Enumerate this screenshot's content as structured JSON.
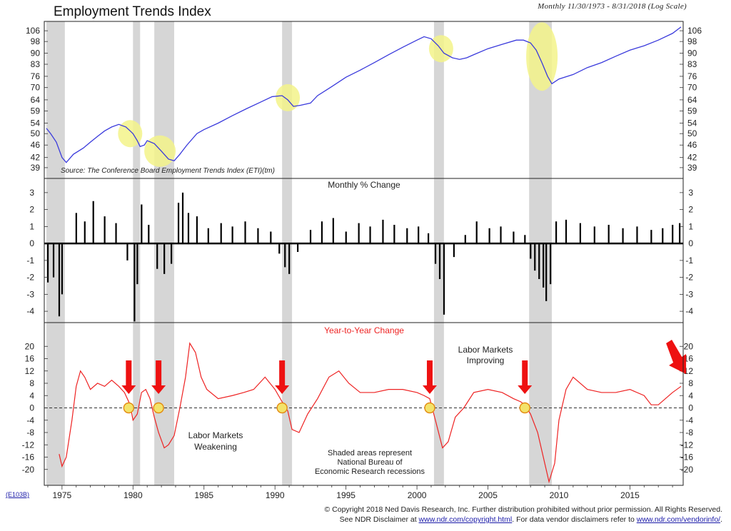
{
  "header": {
    "title": "Employment Trends Index",
    "range": "Monthly 11/30/1973 - 8/31/2018 (Log Scale)"
  },
  "footer": {
    "chart_code": "(E103B)",
    "copyright": "© Copyright 2018 Ned Davis Research, Inc.  Further distribution prohibited without prior permission.  All Rights Reserved.",
    "disclaimer_prefix": "See NDR Disclaimer at ",
    "disclaimer_link": "www.ndr.com/copyright.html",
    "vendor_prefix": ".  For data vendor disclaimers refer to ",
    "vendor_link": "www.ndr.com/vendorinfo/",
    "vendor_suffix": "."
  },
  "colors": {
    "eti": "#3a3adc",
    "yoy": "#ee2222",
    "recession": "#d6d6d6",
    "highlight": "#f3f38a",
    "arrow": "#ee1111"
  },
  "chart_data": [
    {
      "type": "line",
      "panel": "Employment Trends Index",
      "scale": "log",
      "source": "Source: The Conference Board Employment Trends Index (ETI)(tm)",
      "yticks": [
        39,
        42,
        46,
        50,
        54,
        59,
        64,
        70,
        76,
        83,
        90,
        98,
        106
      ],
      "xticks": [
        1975,
        1980,
        1985,
        1990,
        1995,
        2000,
        2005,
        2010,
        2015
      ],
      "ylim": [
        37,
        110
      ],
      "recessions": [
        [
          1973.9,
          1975.2
        ],
        [
          1980.0,
          1980.5
        ],
        [
          1981.5,
          1982.9
        ],
        [
          1990.5,
          1991.2
        ],
        [
          2001.2,
          2001.9
        ],
        [
          2007.9,
          2009.5
        ]
      ],
      "highlights": [
        [
          1979.8,
          50
        ],
        [
          1981.9,
          44
        ],
        [
          1990.9,
          65
        ],
        [
          2001.7,
          93
        ],
        [
          2008.8,
          86
        ]
      ],
      "series": [
        {
          "x": [
            1973.9,
            1974.2,
            1974.6,
            1975.0,
            1975.3,
            1975.8,
            1976.5,
            1977.0,
            1977.5,
            1978.0,
            1978.5,
            1979.0,
            1979.5,
            1979.8,
            1980.0,
            1980.3,
            1980.5,
            1980.8,
            1981.0,
            1981.5,
            1982.0,
            1982.5,
            1982.9,
            1983.3,
            1983.8,
            1984.5,
            1985.0,
            1986.0,
            1987.0,
            1988.0,
            1989.0,
            1989.8,
            1990.5,
            1990.9,
            1991.3,
            1991.8,
            1992.5,
            1993.0,
            1994.0,
            1995.0,
            1996.0,
            1997.0,
            1998.0,
            1999.0,
            2000.0,
            2000.5,
            2001.0,
            2001.5,
            2001.9,
            2002.5,
            2003.0,
            2003.5,
            2004.0,
            2005.0,
            2006.0,
            2007.0,
            2007.5,
            2008.0,
            2008.4,
            2008.8,
            2009.2,
            2009.5,
            2010.0,
            2011.0,
            2012.0,
            2013.0,
            2014.0,
            2015.0,
            2016.0,
            2017.0,
            2018.0,
            2018.6
          ],
          "values": [
            52,
            50,
            47,
            42,
            40.5,
            43,
            45,
            47,
            49,
            51,
            52.5,
            53.5,
            52.5,
            51,
            50,
            47.5,
            45.5,
            46,
            47.5,
            46.5,
            44,
            41.5,
            41,
            43,
            46,
            50,
            51.5,
            54,
            57,
            60,
            63,
            65.5,
            66,
            64,
            61,
            61.5,
            62.5,
            66,
            70.5,
            75.5,
            79.5,
            84,
            89,
            94,
            99,
            101.5,
            100,
            95,
            90,
            87,
            86,
            87,
            89,
            93,
            96,
            99,
            99,
            97,
            92,
            84,
            76,
            72,
            74.5,
            77,
            81,
            84,
            88,
            92,
            95,
            99,
            104,
            109
          ]
        }
      ]
    },
    {
      "type": "bar",
      "panel": "Monthly % Change",
      "title": "Monthly % Change",
      "yticks": [
        -4,
        -3,
        -2,
        -1,
        0,
        1,
        2,
        3
      ],
      "ylim": [
        -4.5,
        3.5
      ],
      "series": [
        {
          "x": [
            1974.0,
            1974.4,
            1974.8,
            1975.0,
            1976.0,
            1976.6,
            1977.2,
            1978.0,
            1978.8,
            1979.6,
            1980.1,
            1980.3,
            1980.6,
            1981.1,
            1981.7,
            1982.2,
            1982.7,
            1983.2,
            1983.5,
            1983.9,
            1984.5,
            1985.3,
            1986.2,
            1987.0,
            1987.9,
            1988.8,
            1989.7,
            1990.3,
            1990.7,
            1991.0,
            1991.6,
            1992.5,
            1993.3,
            1994.1,
            1995.0,
            1995.9,
            1996.7,
            1997.6,
            1998.4,
            1999.3,
            2000.1,
            2000.8,
            2001.3,
            2001.6,
            2001.9,
            2002.6,
            2003.4,
            2004.2,
            2005.1,
            2005.9,
            2006.8,
            2007.6,
            2008.0,
            2008.3,
            2008.6,
            2008.9,
            2009.1,
            2009.4,
            2009.8,
            2010.5,
            2011.5,
            2012.5,
            2013.5,
            2014.5,
            2015.5,
            2016.5,
            2017.3,
            2018.0,
            2018.5
          ],
          "values": [
            -2.3,
            -2.0,
            -4.3,
            -3.0,
            1.8,
            1.3,
            2.5,
            1.6,
            1.2,
            -1.0,
            -4.6,
            -2.4,
            2.3,
            1.1,
            -1.5,
            -1.8,
            -1.2,
            2.4,
            3.0,
            1.8,
            1.6,
            0.9,
            1.2,
            1.0,
            1.3,
            0.9,
            0.7,
            -0.6,
            -1.4,
            -1.8,
            -0.5,
            0.8,
            1.3,
            1.5,
            0.7,
            1.2,
            1.0,
            1.4,
            1.1,
            0.9,
            1.0,
            0.6,
            -1.2,
            -2.1,
            -4.2,
            -0.8,
            0.5,
            1.3,
            0.9,
            1.0,
            0.7,
            0.5,
            -0.9,
            -1.6,
            -2.1,
            -2.6,
            -3.4,
            -2.4,
            1.3,
            1.4,
            1.2,
            1.0,
            1.1,
            0.9,
            1.0,
            0.8,
            0.9,
            1.1,
            1.2
          ]
        }
      ]
    },
    {
      "type": "line",
      "panel": "Year-to-Year Change",
      "title": "Year-to-Year Change",
      "yticks": [
        -20,
        -16,
        -12,
        -8,
        -4,
        0,
        4,
        8,
        12,
        16,
        20
      ],
      "ylim": [
        -24,
        24
      ],
      "reference_line": 0,
      "annotations": [
        "Labor Markets Weakening",
        "Labor Markets Improving",
        "Shaded areas represent",
        "National Bureau of",
        "Economic Research recessions"
      ],
      "signal_arrows": [
        1979.7,
        1981.8,
        1990.5,
        2000.9,
        2007.6,
        2018.0
      ],
      "signal_circles": [
        1979.7,
        1981.8,
        1990.5,
        2000.9,
        2007.6
      ],
      "series": [
        {
          "x": [
            1974.8,
            1975.0,
            1975.3,
            1975.7,
            1976.0,
            1976.3,
            1976.6,
            1977.0,
            1977.5,
            1978.0,
            1978.5,
            1979.0,
            1979.4,
            1979.8,
            1980.0,
            1980.3,
            1980.6,
            1980.9,
            1981.2,
            1981.5,
            1981.8,
            1982.2,
            1982.5,
            1982.9,
            1983.3,
            1983.7,
            1984.0,
            1984.4,
            1984.8,
            1985.2,
            1986.0,
            1987.0,
            1987.8,
            1988.5,
            1989.3,
            1990.0,
            1990.5,
            1990.9,
            1991.2,
            1991.7,
            1992.3,
            1993.0,
            1993.8,
            1994.5,
            1995.2,
            1996.0,
            1997.0,
            1998.0,
            1999.0,
            2000.0,
            2000.5,
            2000.9,
            2001.3,
            2001.8,
            2002.2,
            2002.7,
            2003.3,
            2004.0,
            2005.0,
            2006.0,
            2006.8,
            2007.3,
            2007.6,
            2008.0,
            2008.5,
            2008.9,
            2009.3,
            2009.7,
            2010.0,
            2010.5,
            2011.0,
            2012.0,
            2013.0,
            2014.0,
            2015.0,
            2016.0,
            2016.5,
            2017.0,
            2017.5,
            2018.0,
            2018.6
          ],
          "values": [
            -15,
            -19,
            -16,
            -4,
            7,
            12,
            10,
            6,
            8,
            7,
            9,
            7,
            5,
            1,
            -4,
            -2,
            5,
            6,
            3,
            -3,
            -8,
            -13,
            -12,
            -9,
            0,
            10,
            21,
            18,
            10,
            6,
            3,
            4,
            5,
            6,
            10,
            6,
            2,
            -1,
            -7,
            -8,
            -2,
            3,
            10,
            12,
            8,
            5,
            5,
            6,
            6,
            5,
            4,
            3,
            -4,
            -13,
            -11,
            -3,
            0,
            5,
            6,
            5,
            3,
            2,
            1,
            -2,
            -8,
            -16,
            -24,
            -18,
            -4,
            6,
            10,
            6,
            5,
            5,
            6,
            4,
            1,
            1,
            3,
            5,
            7
          ]
        }
      ]
    }
  ]
}
